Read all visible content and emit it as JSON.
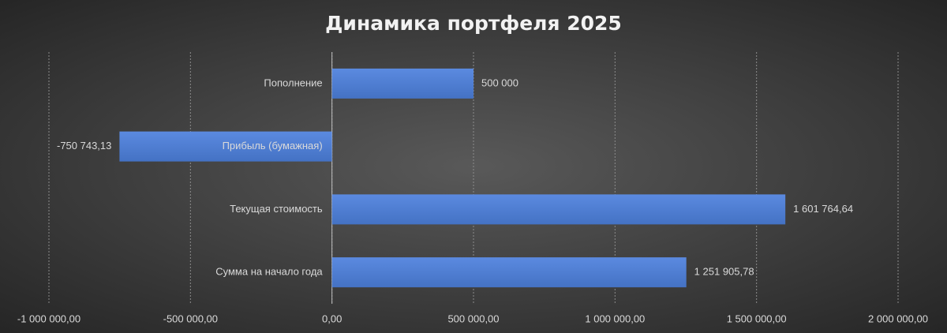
{
  "chart_data": {
    "type": "bar",
    "orientation": "horizontal",
    "title": "Динамика портфеля 2025",
    "categories": [
      "Пополнение",
      "Прибыль (бумажная)",
      "Текущая стоимость",
      "Сумма на начало года"
    ],
    "values": [
      500000,
      -750743.13,
      1601764.64,
      1251905.78
    ],
    "value_labels": [
      "500 000",
      "-750 743,13",
      "1 601 764,64",
      "1 251 905,78"
    ],
    "color": "#4472c4",
    "xlim": [
      -1000000,
      2000000
    ],
    "xticks": [
      {
        "value": -1000000,
        "label": "-1 000 000,00"
      },
      {
        "value": -500000,
        "label": "-500 000,00"
      },
      {
        "value": 0,
        "label": "0,00"
      },
      {
        "value": 500000,
        "label": "500 000,00"
      },
      {
        "value": 1000000,
        "label": "1 000 000,00"
      },
      {
        "value": 1500000,
        "label": "1 500 000,00"
      },
      {
        "value": 2000000,
        "label": "2 000 000,00"
      }
    ],
    "grid": true
  }
}
